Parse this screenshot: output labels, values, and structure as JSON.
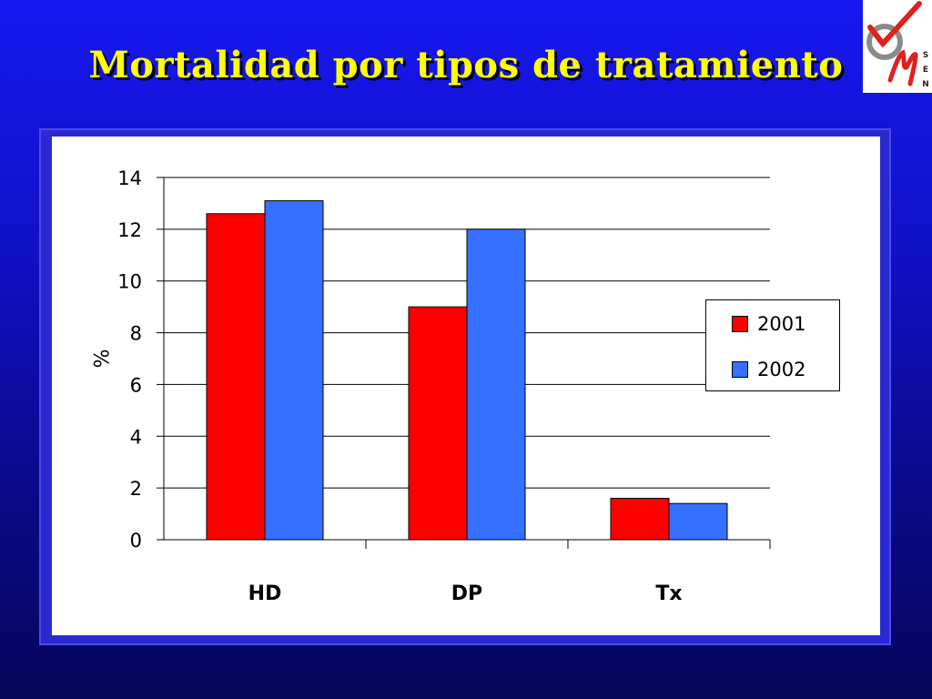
{
  "slide": {
    "title": "Mortalidad por tipos de tratamiento"
  },
  "logo": {
    "letters": [
      "S",
      "E",
      "N"
    ],
    "colors": {
      "red": "#e02020",
      "gray": "#8a8a8a",
      "dark": "#222222"
    }
  },
  "colors": {
    "background_top": "#1717f0",
    "title": "#ffff00",
    "series_2001": "#ff0000",
    "series_2002": "#3670ff"
  },
  "chart_data": {
    "type": "bar",
    "title": "",
    "xlabel": "",
    "ylabel": "%",
    "categories": [
      "HD",
      "DP",
      "Tx"
    ],
    "series": [
      {
        "name": "2001",
        "values": [
          12.6,
          9.0,
          1.6
        ],
        "color": "#ff0000"
      },
      {
        "name": "2002",
        "values": [
          13.1,
          12.0,
          1.4
        ],
        "color": "#3670ff"
      }
    ],
    "ylim": [
      0,
      14
    ],
    "yticks": [
      "0",
      "2",
      "4",
      "6",
      "8",
      "10",
      "12",
      "14"
    ],
    "grid": true,
    "legend_position": "right"
  }
}
